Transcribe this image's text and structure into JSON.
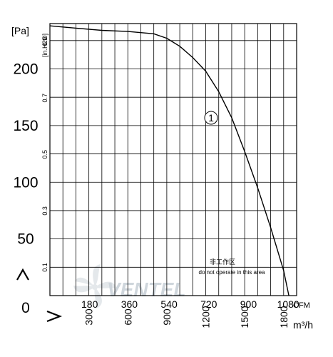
{
  "chart_data": {
    "type": "line",
    "title": "",
    "y_axis_pa": {
      "unit_label": "[Pa]",
      "range": [
        0,
        240
      ],
      "ticks": [
        0,
        50,
        100,
        150,
        200
      ],
      "tick_labels": [
        "0",
        "50",
        "100",
        "150",
        "200"
      ]
    },
    "y_axis_inh2o": {
      "unit_label": "[in.H2O]",
      "ticks": [
        0.1,
        0.3,
        0.5,
        0.7,
        0.9
      ],
      "tick_labels": [
        "0.1",
        "0.3",
        "0.5",
        "0.7",
        "0.9"
      ]
    },
    "x_axis_cfm": {
      "unit_label": "CFM",
      "ticks": [
        180,
        360,
        540,
        720,
        900,
        1080
      ],
      "tick_labels": [
        "180",
        "360",
        "540",
        "720",
        "900",
        "1080"
      ]
    },
    "x_axis_m3h": {
      "unit_label": "m³/h",
      "range": [
        0,
        1900
      ],
      "ticks": [
        300,
        600,
        900,
        1200,
        1500,
        1800
      ],
      "tick_labels": [
        "300",
        "600",
        "900",
        "1200",
        "1500",
        "1800"
      ]
    },
    "grid": true,
    "series": [
      {
        "name": "1",
        "x": [
          0,
          200,
          400,
          600,
          800,
          900,
          1000,
          1100,
          1200,
          1300,
          1400,
          1500,
          1600,
          1700,
          1800,
          1840
        ],
        "y": [
          238,
          236,
          234,
          233,
          231,
          227,
          220,
          210,
          198,
          180,
          157,
          127,
          95,
          60,
          22,
          0
        ]
      }
    ],
    "annotations": {
      "curve_marker": "1",
      "area_note_cn": "非工作区",
      "area_note_en": "do not operate in this area"
    },
    "watermark": "VENTEL"
  }
}
